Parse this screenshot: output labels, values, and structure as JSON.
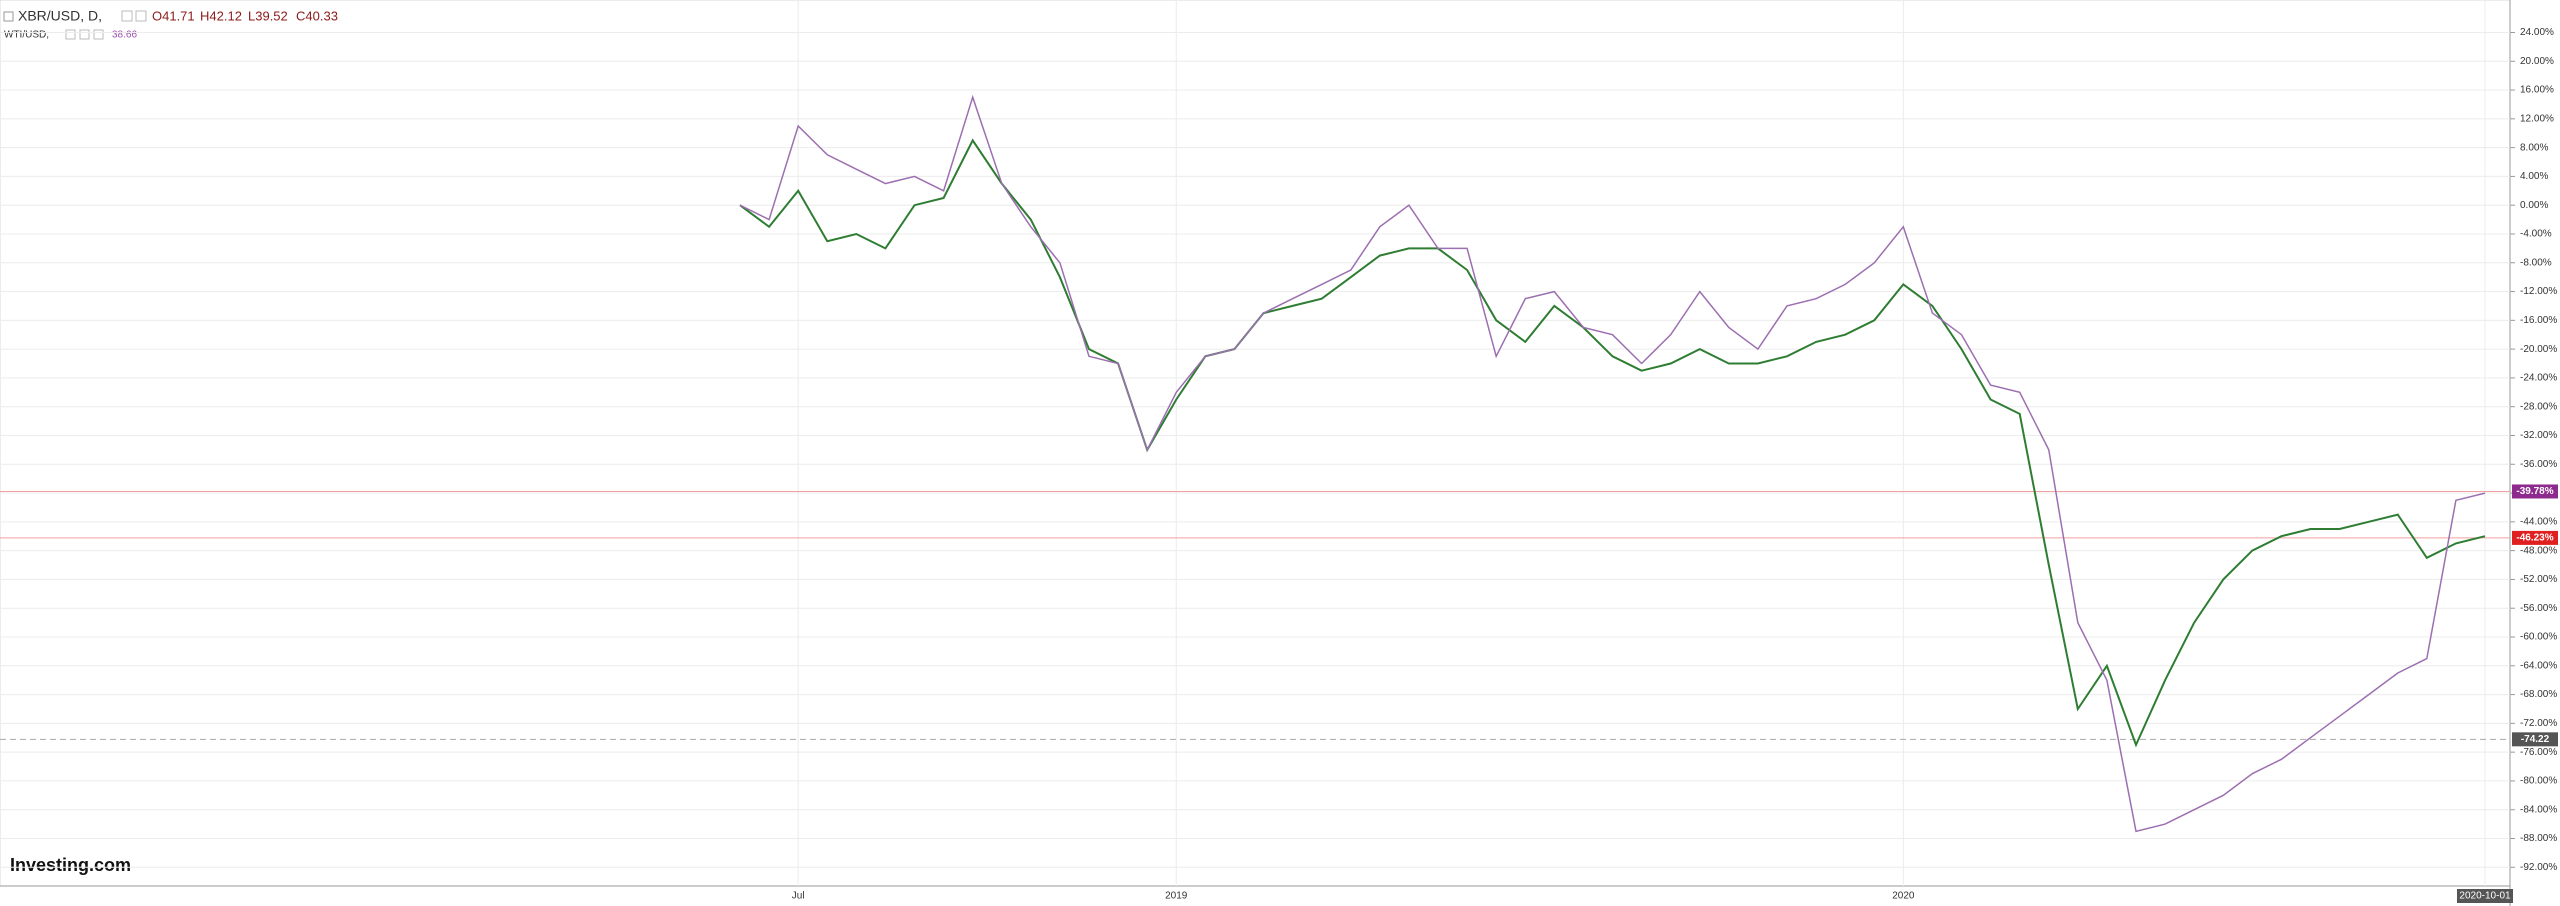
{
  "chart_data": {
    "type": "line",
    "header": {
      "symbol": "XBR/USD, D,",
      "open": "O41.71",
      "high": "H42.12",
      "low": "L39.52",
      "close": "C40.33",
      "symbol2": "WTI/USD,",
      "last2": "38.66"
    },
    "logo": "Investing.com",
    "categories": [
      null,
      null,
      "Jul",
      null,
      null,
      null,
      null,
      null,
      null,
      null,
      null,
      null,
      null,
      null,
      null,
      "2019",
      null,
      null,
      null,
      null,
      null,
      null,
      null,
      null,
      null,
      null,
      null,
      null,
      null,
      null,
      null,
      null,
      null,
      null,
      null,
      null,
      null,
      null,
      null,
      null,
      "2020",
      null,
      null,
      null,
      null,
      null,
      null,
      null,
      null,
      null,
      null,
      null,
      null,
      null,
      null,
      null,
      null,
      null,
      null,
      null,
      "2020-10-01"
    ],
    "series": [
      {
        "name": "XBR/USD",
        "color": "#2e7d32",
        "values": [
          0,
          -3,
          2,
          -5,
          -4,
          -6,
          0,
          1,
          9,
          3,
          -2,
          -10,
          -20,
          -22,
          -34,
          -27,
          -21,
          -20,
          -15,
          -14,
          -13,
          -10,
          -7,
          -6,
          -6,
          -9,
          -16,
          -19,
          -14,
          -17,
          -21,
          -23,
          -22,
          -20,
          -22,
          -22,
          -21,
          -19,
          -18,
          -16,
          -11,
          -14,
          -20,
          -27,
          -29,
          -50,
          -70,
          -64,
          -75,
          -66,
          -58,
          -52,
          -48,
          -46,
          -45,
          -45,
          -44,
          -43,
          -49,
          -47,
          -46
        ]
      },
      {
        "name": "WTI/USD",
        "color": "#9c6fb0",
        "values": [
          0,
          -2,
          11,
          7,
          5,
          3,
          4,
          2,
          15,
          3,
          -3,
          -8,
          -21,
          -22,
          -34,
          -26,
          -21,
          -20,
          -15,
          -13,
          -11,
          -9,
          -3,
          0,
          -6,
          -6,
          -21,
          -13,
          -12,
          -17,
          -18,
          -22,
          -18,
          -12,
          -17,
          -20,
          -14,
          -13,
          -11,
          -8,
          -3,
          -15,
          -18,
          -25,
          -26,
          -34,
          -58,
          -66,
          -87,
          -86,
          -84,
          -82,
          -79,
          -77,
          -74,
          -71,
          -68,
          -65,
          -63,
          -41,
          -40
        ]
      }
    ],
    "ylim": [
      -94.6,
      27.4
    ],
    "yticks": [
      {
        "value": 24,
        "label": "24.00%"
      },
      {
        "value": 20,
        "label": "20.00%"
      },
      {
        "value": 16,
        "label": "16.00%"
      },
      {
        "value": 12,
        "label": "12.00%"
      },
      {
        "value": 8,
        "label": "8.00%"
      },
      {
        "value": 4,
        "label": "4.00%"
      },
      {
        "value": 0,
        "label": "0.00%"
      },
      {
        "value": -4,
        "label": "-4.00%"
      },
      {
        "value": -8,
        "label": "-8.00%"
      },
      {
        "value": -12,
        "label": "-12.00%"
      },
      {
        "value": -16,
        "label": "-16.00%"
      },
      {
        "value": -20,
        "label": "-20.00%"
      },
      {
        "value": -24,
        "label": "-24.00%"
      },
      {
        "value": -28,
        "label": "-28.00%"
      },
      {
        "value": -32,
        "label": "-32.00%"
      },
      {
        "value": -36,
        "label": "-36.00%"
      },
      {
        "value": -40,
        "label": "-40.00%"
      },
      {
        "value": -44,
        "label": "-44.00%"
      },
      {
        "value": -48,
        "label": "-48.00%"
      },
      {
        "value": -52,
        "label": "-52.00%"
      },
      {
        "value": -56,
        "label": "-56.00%"
      },
      {
        "value": -60,
        "label": "-60.00%"
      },
      {
        "value": -64,
        "label": "-64.00%"
      },
      {
        "value": -68,
        "label": "-68.00%"
      },
      {
        "value": -72,
        "label": "-72.00%"
      },
      {
        "value": -76,
        "label": "-76.00%"
      },
      {
        "value": -80,
        "label": "-80.00%"
      },
      {
        "value": -84,
        "label": "-84.00%"
      },
      {
        "value": -88,
        "label": "-88.00%"
      },
      {
        "value": -92,
        "label": "-92.00%"
      }
    ],
    "grid": true,
    "price_labels": [
      {
        "value": -39.78,
        "label": "-39.78%",
        "color": "#8e2a8e"
      },
      {
        "value": -46.23,
        "label": "-46.23%",
        "color": "#e02020"
      },
      {
        "value": -74.22,
        "label": "-74.22",
        "color": "#555555"
      }
    ]
  }
}
